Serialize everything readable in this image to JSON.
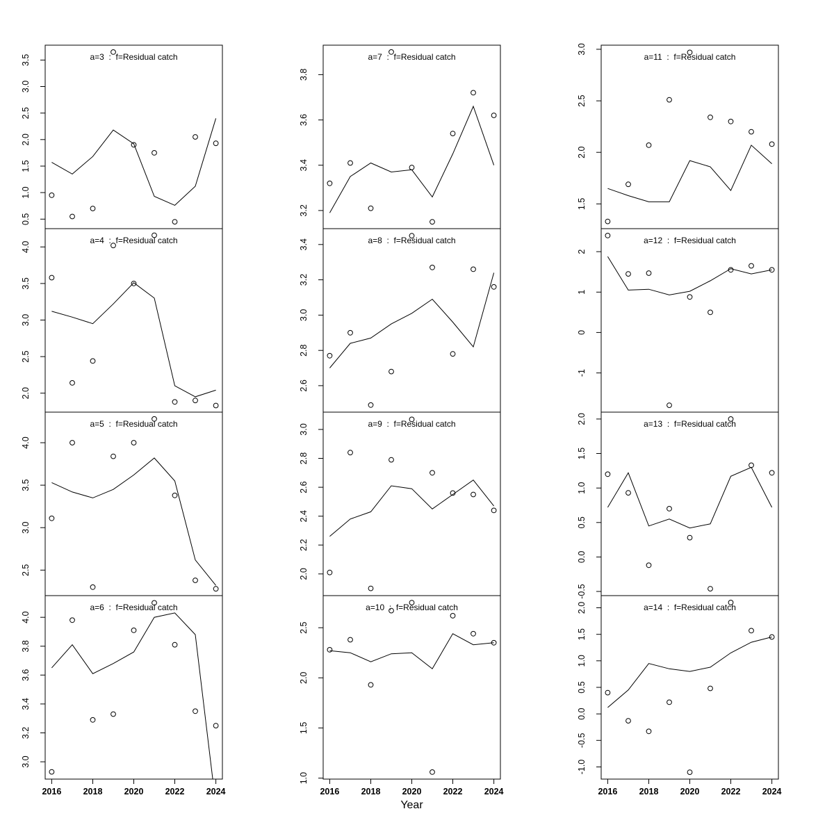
{
  "chart_data": {
    "type": "line",
    "subtype": "small-multiples scatter + fitted line",
    "xlabel": "Year",
    "x": [
      2016,
      2017,
      2018,
      2019,
      2020,
      2021,
      2022,
      2023,
      2024
    ],
    "x_ticks": [
      2016,
      2018,
      2020,
      2022,
      2024
    ],
    "x_tick_labels": [
      "2016",
      "2018",
      "2020",
      "2022",
      "2024"
    ],
    "title_color": "#7f7f7f",
    "line_color": "#000000",
    "point_color": "#000000",
    "grid": "off",
    "layout": "4 rows x 3 columns, column-major order",
    "panels": [
      {
        "id": "a3",
        "title": "a=3  :  f=Residual catch",
        "ylim": [
          0.32,
          3.78
        ],
        "yticks": [
          0.5,
          1.0,
          1.5,
          2.0,
          2.5,
          3.0,
          3.5
        ],
        "ytick_labels": [
          "0.5",
          "1.0",
          "1.5",
          "2.0",
          "2.5",
          "3.0",
          "3.5"
        ],
        "points": [
          0.95,
          0.55,
          0.7,
          3.65,
          1.9,
          1.75,
          0.45,
          2.05,
          1.93
        ],
        "line": [
          1.57,
          1.35,
          1.68,
          2.18,
          1.92,
          0.93,
          0.76,
          1.12,
          2.4
        ]
      },
      {
        "id": "a4",
        "title": "a=4  :  f=Residual catch",
        "ylim": [
          1.74,
          4.25
        ],
        "yticks": [
          2.0,
          2.5,
          3.0,
          3.5,
          4.0
        ],
        "ytick_labels": [
          "2.0",
          "2.5",
          "3.0",
          "3.5",
          "4.0"
        ],
        "points": [
          3.58,
          2.14,
          2.44,
          4.02,
          3.5,
          4.16,
          1.88,
          1.9,
          1.83
        ],
        "line": [
          3.12,
          3.04,
          2.95,
          3.22,
          3.51,
          3.3,
          2.1,
          1.95,
          2.04
        ]
      },
      {
        "id": "a5",
        "title": "a=5  :  f=Residual catch",
        "ylim": [
          2.2,
          4.36
        ],
        "yticks": [
          2.5,
          3.0,
          3.5,
          4.0
        ],
        "ytick_labels": [
          "2.5",
          "3.0",
          "3.5",
          "4.0"
        ],
        "points": [
          3.11,
          4.0,
          2.3,
          3.84,
          4.0,
          4.28,
          3.38,
          2.38,
          2.28
        ],
        "line": [
          3.53,
          3.42,
          3.35,
          3.45,
          3.62,
          3.82,
          3.55,
          2.62,
          2.32
        ]
      },
      {
        "id": "a6",
        "title": "a=6  :  f=Residual catch",
        "ylim": [
          2.88,
          4.15
        ],
        "yticks": [
          3.0,
          3.2,
          3.4,
          3.6,
          3.8,
          4.0
        ],
        "ytick_labels": [
          "3.0",
          "3.2",
          "3.4",
          "3.6",
          "3.8",
          "4.0"
        ],
        "points": [
          2.93,
          3.98,
          3.29,
          3.33,
          3.91,
          4.1,
          3.81,
          3.35,
          3.25
        ],
        "line": [
          3.65,
          3.81,
          3.61,
          3.68,
          3.76,
          4.0,
          4.03,
          3.88,
          2.7
        ]
      },
      {
        "id": "a7",
        "title": "a=7  :  f=Residual catch",
        "ylim": [
          3.12,
          3.93
        ],
        "yticks": [
          3.2,
          3.4,
          3.6,
          3.8
        ],
        "ytick_labels": [
          "3.2",
          "3.4",
          "3.6",
          "3.8"
        ],
        "points": [
          3.32,
          3.41,
          3.21,
          3.9,
          3.39,
          3.15,
          3.54,
          3.72,
          3.62
        ],
        "line": [
          3.19,
          3.35,
          3.41,
          3.37,
          3.38,
          3.26,
          3.45,
          3.66,
          3.4
        ]
      },
      {
        "id": "a8",
        "title": "a=8  :  f=Residual catch",
        "ylim": [
          2.45,
          3.49
        ],
        "yticks": [
          2.6,
          2.8,
          3.0,
          3.2,
          3.4
        ],
        "ytick_labels": [
          "2.6",
          "2.8",
          "3.0",
          "3.2",
          "3.4"
        ],
        "points": [
          2.77,
          2.9,
          2.49,
          2.68,
          3.45,
          3.27,
          2.78,
          3.26,
          3.16
        ],
        "line": [
          2.7,
          2.84,
          2.87,
          2.95,
          3.01,
          3.09,
          2.96,
          2.82,
          3.24
        ]
      },
      {
        "id": "a9",
        "title": "a=9  :  f=Residual catch",
        "ylim": [
          1.85,
          3.12
        ],
        "yticks": [
          2.0,
          2.2,
          2.4,
          2.6,
          2.8,
          3.0
        ],
        "ytick_labels": [
          "2.0",
          "2.2",
          "2.4",
          "2.6",
          "2.8",
          "3.0"
        ],
        "points": [
          2.01,
          2.84,
          1.9,
          2.79,
          3.07,
          2.7,
          2.56,
          2.55,
          2.44
        ],
        "line": [
          2.26,
          2.38,
          2.43,
          2.61,
          2.59,
          2.45,
          2.55,
          2.65,
          2.47
        ]
      },
      {
        "id": "a10",
        "title": "a=10  :  f=Residual catch",
        "ylim": [
          0.99,
          2.82
        ],
        "yticks": [
          1.0,
          1.5,
          2.0,
          2.5
        ],
        "ytick_labels": [
          "1.0",
          "1.5",
          "2.0",
          "2.5"
        ],
        "points": [
          2.28,
          2.38,
          1.93,
          2.67,
          2.75,
          1.06,
          2.62,
          2.44,
          2.35
        ],
        "line": [
          2.27,
          2.25,
          2.16,
          2.24,
          2.25,
          2.09,
          2.44,
          2.33,
          2.35
        ]
      },
      {
        "id": "a11",
        "title": "a=11  :  f=Residual catch",
        "ylim": [
          1.26,
          3.04
        ],
        "yticks": [
          1.5,
          2.0,
          2.5,
          3.0
        ],
        "ytick_labels": [
          "1.5",
          "2.0",
          "2.5",
          "3.0"
        ],
        "points": [
          1.33,
          1.69,
          2.07,
          2.51,
          2.97,
          2.34,
          2.3,
          2.2,
          2.08
        ],
        "line": [
          1.65,
          1.58,
          1.52,
          1.52,
          1.92,
          1.86,
          1.63,
          2.07,
          1.89
        ]
      },
      {
        "id": "a12",
        "title": "a=12  :  f=Residual catch",
        "ylim": [
          -1.97,
          2.57
        ],
        "yticks": [
          -1,
          0,
          1,
          2
        ],
        "ytick_labels": [
          "-1",
          "0",
          "1",
          "2"
        ],
        "points": [
          2.4,
          1.45,
          1.47,
          -1.8,
          0.88,
          0.5,
          1.55,
          1.65,
          1.55
        ],
        "line": [
          1.88,
          1.05,
          1.07,
          0.93,
          1.02,
          1.28,
          1.58,
          1.45,
          1.55
        ]
      },
      {
        "id": "a13",
        "title": "a=13  :  f=Residual catch",
        "ylim": [
          -0.56,
          2.1
        ],
        "yticks": [
          -0.5,
          0.0,
          0.5,
          1.0,
          1.5,
          2.0
        ],
        "ytick_labels": [
          "-0.5",
          "0.0",
          "0.5",
          "1.0",
          "1.5",
          "2.0"
        ],
        "points": [
          1.2,
          0.93,
          -0.12,
          0.7,
          0.28,
          -0.46,
          2.0,
          1.33,
          1.22
        ],
        "line": [
          0.72,
          1.22,
          0.45,
          0.55,
          0.42,
          0.48,
          1.17,
          1.3,
          0.72
        ]
      },
      {
        "id": "a14",
        "title": "a=14  :  f=Residual catch",
        "ylim": [
          -1.23,
          2.23
        ],
        "yticks": [
          -1.0,
          -0.5,
          0.0,
          0.5,
          1.0,
          1.5,
          2.0
        ],
        "ytick_labels": [
          "-1.0",
          "-0.5",
          "0.0",
          "0.5",
          "1.0",
          "1.5",
          "2.0"
        ],
        "points": [
          0.4,
          -0.13,
          -0.33,
          0.22,
          -1.1,
          0.48,
          2.1,
          1.57,
          1.45
        ],
        "line": [
          0.12,
          0.45,
          0.95,
          0.85,
          0.8,
          0.88,
          1.15,
          1.35,
          1.45
        ]
      }
    ]
  }
}
